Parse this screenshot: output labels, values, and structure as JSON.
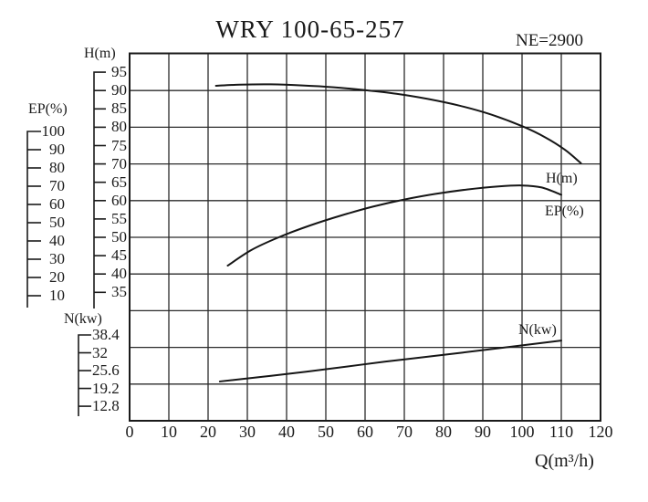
{
  "title": "WRY 100-65-257",
  "speed_label": "NE=2900",
  "chart_data": {
    "type": "line",
    "title": "WRY 100-65-257",
    "subtitle": "NE=2900",
    "grid": true,
    "legend_position": "inline-right",
    "x_axis": {
      "label": "Q(m³/h)",
      "min": 0,
      "max": 120,
      "ticks": [
        0,
        10,
        20,
        30,
        40,
        50,
        60,
        70,
        80,
        90,
        100,
        110,
        120
      ]
    },
    "y_axes": [
      {
        "id": "H",
        "label": "H(m)",
        "min": 35,
        "max": 95,
        "ticks": [
          95,
          90,
          85,
          80,
          75,
          70,
          65,
          60,
          55,
          50,
          45,
          40,
          35
        ]
      },
      {
        "id": "EP",
        "label": "EP(%)",
        "min": 10,
        "max": 100,
        "ticks": [
          100,
          90,
          80,
          70,
          60,
          50,
          40,
          30,
          20,
          10
        ]
      },
      {
        "id": "N",
        "label": "N(kw)",
        "min": 12.8,
        "max": 38.4,
        "ticks": [
          38.4,
          32,
          25.6,
          19.2,
          12.8
        ]
      }
    ],
    "series": [
      {
        "name": "H(m)",
        "axis": "H",
        "points": [
          [
            22,
            91.3
          ],
          [
            28,
            91.6
          ],
          [
            36,
            91.7
          ],
          [
            44,
            91.4
          ],
          [
            52,
            90.9
          ],
          [
            60,
            90.1
          ],
          [
            68,
            89.1
          ],
          [
            76,
            87.7
          ],
          [
            84,
            85.9
          ],
          [
            92,
            83.5
          ],
          [
            100,
            80.3
          ],
          [
            106,
            77.2
          ],
          [
            111,
            73.8
          ],
          [
            115,
            70.2
          ]
        ]
      },
      {
        "name": "EP(%)",
        "axis": "EP",
        "points": [
          [
            25,
            26.5
          ],
          [
            31,
            35
          ],
          [
            38,
            42
          ],
          [
            46,
            48.5
          ],
          [
            54,
            54
          ],
          [
            62,
            58.8
          ],
          [
            70,
            62.7
          ],
          [
            78,
            65.8
          ],
          [
            86,
            68.2
          ],
          [
            94,
            69.9
          ],
          [
            100,
            70.4
          ],
          [
            105,
            69.3
          ],
          [
            110,
            65.3
          ]
        ]
      },
      {
        "name": "N(kw)",
        "axis": "N",
        "points": [
          [
            23,
            21.7
          ],
          [
            45,
            25.2
          ],
          [
            65,
            28.8
          ],
          [
            85,
            32.1
          ],
          [
            110,
            36.4
          ]
        ]
      }
    ]
  }
}
